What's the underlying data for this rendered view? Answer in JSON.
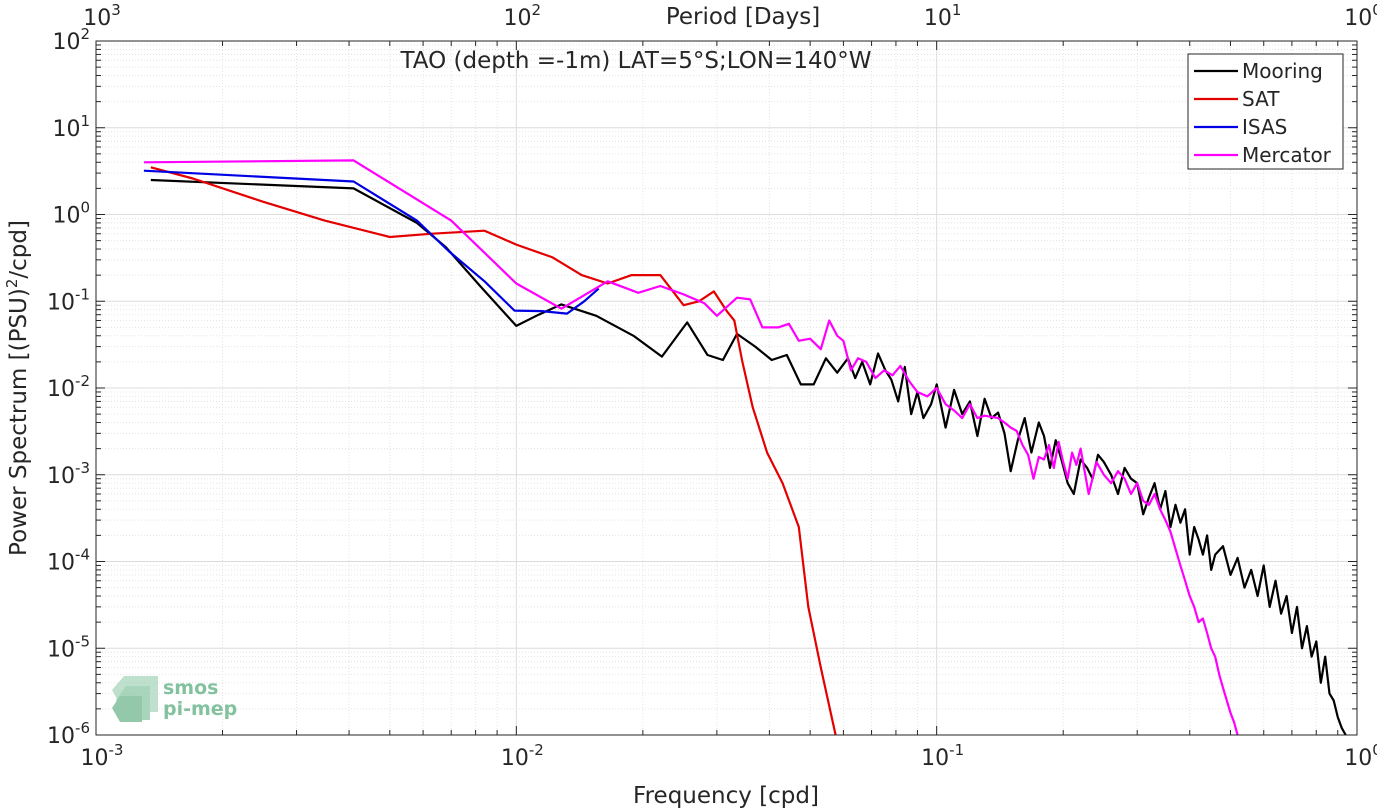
{
  "chart_data": {
    "type": "line",
    "title": "TAO (depth =-1m) LAT=5°S;LON=140°W",
    "xlabel": "Frequency [cpd]",
    "ylabel_main": "Power Spectrum [(PSU)",
    "ylabel_sup": "2",
    "ylabel_tail": "/cpd]",
    "top_axis_label": "Period [Days]",
    "x_scale": "log",
    "y_scale": "log",
    "xlim": [
      0.001,
      1
    ],
    "ylim": [
      1e-06,
      100
    ],
    "grid": true,
    "legend_position": "top-right",
    "x_tick_labels": [
      {
        "value": 0.001,
        "base": "10",
        "exp": "-3"
      },
      {
        "value": 0.01,
        "base": "10",
        "exp": "-2"
      },
      {
        "value": 0.1,
        "base": "10",
        "exp": "-1"
      },
      {
        "value": 1,
        "base": "10",
        "exp": "0"
      }
    ],
    "top_tick_labels": [
      {
        "value": 0.001,
        "base": "10",
        "exp": "3"
      },
      {
        "value": 0.01,
        "base": "10",
        "exp": "2"
      },
      {
        "value": 0.1,
        "base": "10",
        "exp": "1"
      },
      {
        "value": 1,
        "base": "10",
        "exp": "0"
      }
    ],
    "y_tick_labels": [
      {
        "value": 100,
        "base": "10",
        "exp": "2"
      },
      {
        "value": 10,
        "base": "10",
        "exp": "1"
      },
      {
        "value": 1,
        "base": "10",
        "exp": "0"
      },
      {
        "value": 0.1,
        "base": "10",
        "exp": "-1"
      },
      {
        "value": 0.01,
        "base": "10",
        "exp": "-2"
      },
      {
        "value": 0.001,
        "base": "10",
        "exp": "-3"
      },
      {
        "value": 0.0001,
        "base": "10",
        "exp": "-4"
      },
      {
        "value": 1e-05,
        "base": "10",
        "exp": "-5"
      },
      {
        "value": 1e-06,
        "base": "10",
        "exp": "-6"
      }
    ],
    "series": [
      {
        "name": "Mooring",
        "color": "#000000",
        "points": [
          [
            0.00135,
            2.5
          ],
          [
            0.0041,
            2.0
          ],
          [
            0.0058,
            0.8
          ],
          [
            0.0068,
            0.42
          ],
          [
            0.0082,
            0.15
          ],
          [
            0.01,
            0.052
          ],
          [
            0.0113,
            0.07
          ],
          [
            0.0128,
            0.092
          ],
          [
            0.0155,
            0.068
          ],
          [
            0.019,
            0.04
          ],
          [
            0.0222,
            0.023
          ],
          [
            0.0255,
            0.057
          ],
          [
            0.0285,
            0.024
          ],
          [
            0.031,
            0.021
          ],
          [
            0.0335,
            0.042
          ],
          [
            0.037,
            0.03
          ],
          [
            0.0405,
            0.021
          ],
          [
            0.044,
            0.024
          ],
          [
            0.0475,
            0.011
          ],
          [
            0.051,
            0.011
          ],
          [
            0.0545,
            0.022
          ],
          [
            0.058,
            0.015
          ],
          [
            0.0615,
            0.022
          ],
          [
            0.064,
            0.013
          ],
          [
            0.0665,
            0.02
          ],
          [
            0.0695,
            0.011
          ],
          [
            0.0725,
            0.025
          ],
          [
            0.0755,
            0.016
          ],
          [
            0.078,
            0.0125
          ],
          [
            0.081,
            0.007
          ],
          [
            0.084,
            0.0175
          ],
          [
            0.087,
            0.005
          ],
          [
            0.09,
            0.009
          ],
          [
            0.093,
            0.0045
          ],
          [
            0.097,
            0.0065
          ],
          [
            0.1,
            0.011
          ],
          [
            0.105,
            0.0035
          ],
          [
            0.11,
            0.0095
          ],
          [
            0.115,
            0.005
          ],
          [
            0.12,
            0.007
          ],
          [
            0.125,
            0.0028
          ],
          [
            0.13,
            0.0075
          ],
          [
            0.135,
            0.0045
          ],
          [
            0.14,
            0.0052
          ],
          [
            0.145,
            0.003
          ],
          [
            0.15,
            0.0011
          ],
          [
            0.156,
            0.0025
          ],
          [
            0.162,
            0.0045
          ],
          [
            0.168,
            0.0018
          ],
          [
            0.175,
            0.004
          ],
          [
            0.18,
            0.0028
          ],
          [
            0.186,
            0.0012
          ],
          [
            0.192,
            0.0025
          ],
          [
            0.198,
            0.0015
          ],
          [
            0.205,
            0.0008
          ],
          [
            0.212,
            0.0006
          ],
          [
            0.22,
            0.0015
          ],
          [
            0.228,
            0.0012
          ],
          [
            0.235,
            0.0009
          ],
          [
            0.242,
            0.0017
          ],
          [
            0.25,
            0.0014
          ],
          [
            0.26,
            0.001
          ],
          [
            0.27,
            0.0006
          ],
          [
            0.28,
            0.0012
          ],
          [
            0.29,
            0.0009
          ],
          [
            0.3,
            0.0008
          ],
          [
            0.31,
            0.00035
          ],
          [
            0.32,
            0.00055
          ],
          [
            0.33,
            0.0008
          ],
          [
            0.34,
            0.0004
          ],
          [
            0.35,
            0.00065
          ],
          [
            0.36,
            0.00025
          ],
          [
            0.37,
            0.00045
          ],
          [
            0.38,
            0.00028
          ],
          [
            0.39,
            0.0004
          ],
          [
            0.4,
            0.00012
          ],
          [
            0.41,
            0.00025
          ],
          [
            0.42,
            0.00018
          ],
          [
            0.43,
            0.00012
          ],
          [
            0.44,
            0.0002
          ],
          [
            0.45,
            8e-05
          ],
          [
            0.46,
            0.00012
          ],
          [
            0.48,
            0.00015
          ],
          [
            0.5,
            7e-05
          ],
          [
            0.52,
            0.00011
          ],
          [
            0.54,
            5e-05
          ],
          [
            0.56,
            8e-05
          ],
          [
            0.58,
            4e-05
          ],
          [
            0.6,
            9e-05
          ],
          [
            0.62,
            3e-05
          ],
          [
            0.64,
            6e-05
          ],
          [
            0.66,
            2.5e-05
          ],
          [
            0.68,
            4e-05
          ],
          [
            0.7,
            1.5e-05
          ],
          [
            0.72,
            3e-05
          ],
          [
            0.74,
            1e-05
          ],
          [
            0.76,
            1.8e-05
          ],
          [
            0.78,
            8e-06
          ],
          [
            0.8,
            1.2e-05
          ],
          [
            0.82,
            4e-06
          ],
          [
            0.84,
            8e-06
          ],
          [
            0.86,
            3e-06
          ],
          [
            0.88,
            2.5e-06
          ],
          [
            0.9,
            1.6e-06
          ],
          [
            0.92,
            1.2e-06
          ],
          [
            0.94,
            1e-06
          ]
        ]
      },
      {
        "name": "SAT",
        "color": "#e50000",
        "points": [
          [
            0.00135,
            3.5
          ],
          [
            0.0017,
            2.6
          ],
          [
            0.0025,
            1.4
          ],
          [
            0.0035,
            0.85
          ],
          [
            0.005,
            0.55
          ],
          [
            0.0063,
            0.6
          ],
          [
            0.0084,
            0.65
          ],
          [
            0.01,
            0.45
          ],
          [
            0.0122,
            0.32
          ],
          [
            0.0143,
            0.2
          ],
          [
            0.0165,
            0.16
          ],
          [
            0.0188,
            0.2
          ],
          [
            0.022,
            0.2
          ],
          [
            0.025,
            0.09
          ],
          [
            0.0272,
            0.1
          ],
          [
            0.0295,
            0.13
          ],
          [
            0.0318,
            0.075
          ],
          [
            0.033,
            0.06
          ],
          [
            0.0345,
            0.02
          ],
          [
            0.0365,
            0.006
          ],
          [
            0.0395,
            0.0018
          ],
          [
            0.043,
            0.0008
          ],
          [
            0.047,
            0.00025
          ],
          [
            0.0495,
            3e-05
          ],
          [
            0.053,
            6e-06
          ],
          [
            0.0575,
            1e-06
          ]
        ]
      },
      {
        "name": "ISAS",
        "color": "#0000e5",
        "points": [
          [
            0.0013,
            3.2
          ],
          [
            0.0041,
            2.4
          ],
          [
            0.0058,
            0.85
          ],
          [
            0.0069,
            0.38
          ],
          [
            0.0084,
            0.17
          ],
          [
            0.0099,
            0.078
          ],
          [
            0.0115,
            0.077
          ],
          [
            0.0132,
            0.072
          ],
          [
            0.0145,
            0.1
          ],
          [
            0.0157,
            0.14
          ]
        ]
      },
      {
        "name": "Mercator",
        "color": "#ff00ff",
        "points": [
          [
            0.0013,
            4.0
          ],
          [
            0.0041,
            4.2
          ],
          [
            0.007,
            0.85
          ],
          [
            0.01,
            0.16
          ],
          [
            0.0128,
            0.082
          ],
          [
            0.0165,
            0.17
          ],
          [
            0.0195,
            0.125
          ],
          [
            0.022,
            0.15
          ],
          [
            0.025,
            0.12
          ],
          [
            0.028,
            0.095
          ],
          [
            0.03,
            0.068
          ],
          [
            0.032,
            0.09
          ],
          [
            0.0335,
            0.11
          ],
          [
            0.036,
            0.105
          ],
          [
            0.0385,
            0.05
          ],
          [
            0.042,
            0.05
          ],
          [
            0.0445,
            0.055
          ],
          [
            0.047,
            0.035
          ],
          [
            0.05,
            0.037
          ],
          [
            0.053,
            0.028
          ],
          [
            0.0555,
            0.06
          ],
          [
            0.058,
            0.04
          ],
          [
            0.06,
            0.035
          ],
          [
            0.0625,
            0.016
          ],
          [
            0.065,
            0.022
          ],
          [
            0.068,
            0.02
          ],
          [
            0.0715,
            0.013
          ],
          [
            0.075,
            0.016
          ],
          [
            0.0785,
            0.014
          ],
          [
            0.082,
            0.018
          ],
          [
            0.086,
            0.012
          ],
          [
            0.09,
            0.009
          ],
          [
            0.095,
            0.008
          ],
          [
            0.1,
            0.01
          ],
          [
            0.105,
            0.0065
          ],
          [
            0.11,
            0.0055
          ],
          [
            0.115,
            0.0045
          ],
          [
            0.12,
            0.0065
          ],
          [
            0.125,
            0.0045
          ],
          [
            0.13,
            0.0048
          ],
          [
            0.14,
            0.0045
          ],
          [
            0.145,
            0.004
          ],
          [
            0.15,
            0.0035
          ],
          [
            0.155,
            0.0032
          ],
          [
            0.16,
            0.0022
          ],
          [
            0.165,
            0.0017
          ],
          [
            0.17,
            0.0009
          ],
          [
            0.175,
            0.0016
          ],
          [
            0.18,
            0.0015
          ],
          [
            0.185,
            0.0022
          ],
          [
            0.19,
            0.0012
          ],
          [
            0.195,
            0.0024
          ],
          [
            0.2,
            0.0014
          ],
          [
            0.205,
            0.0009
          ],
          [
            0.21,
            0.0018
          ],
          [
            0.215,
            0.0013
          ],
          [
            0.22,
            0.002
          ],
          [
            0.23,
            0.0006
          ],
          [
            0.24,
            0.0014
          ],
          [
            0.25,
            0.001
          ],
          [
            0.26,
            0.0008
          ],
          [
            0.27,
            0.0011
          ],
          [
            0.28,
            0.0009
          ],
          [
            0.29,
            0.0006
          ],
          [
            0.3,
            0.0008
          ],
          [
            0.31,
            0.0005
          ],
          [
            0.32,
            0.00045
          ],
          [
            0.33,
            0.0006
          ],
          [
            0.34,
            0.0004
          ],
          [
            0.35,
            0.0003
          ],
          [
            0.36,
            0.00022
          ],
          [
            0.37,
            0.00014
          ],
          [
            0.38,
            9e-05
          ],
          [
            0.39,
            6e-05
          ],
          [
            0.4,
            4e-05
          ],
          [
            0.41,
            3e-05
          ],
          [
            0.42,
            2e-05
          ],
          [
            0.43,
            2.2e-05
          ],
          [
            0.44,
            1.5e-05
          ],
          [
            0.45,
            1e-05
          ],
          [
            0.46,
            8e-06
          ],
          [
            0.47,
            5e-06
          ],
          [
            0.48,
            3.5e-06
          ],
          [
            0.49,
            2.5e-06
          ],
          [
            0.5,
            1.8e-06
          ],
          [
            0.51,
            1.4e-06
          ],
          [
            0.52,
            1e-06
          ]
        ]
      }
    ]
  },
  "watermark": {
    "line1": "smos",
    "line2": "pi-mep",
    "color": "#4aa87a"
  }
}
